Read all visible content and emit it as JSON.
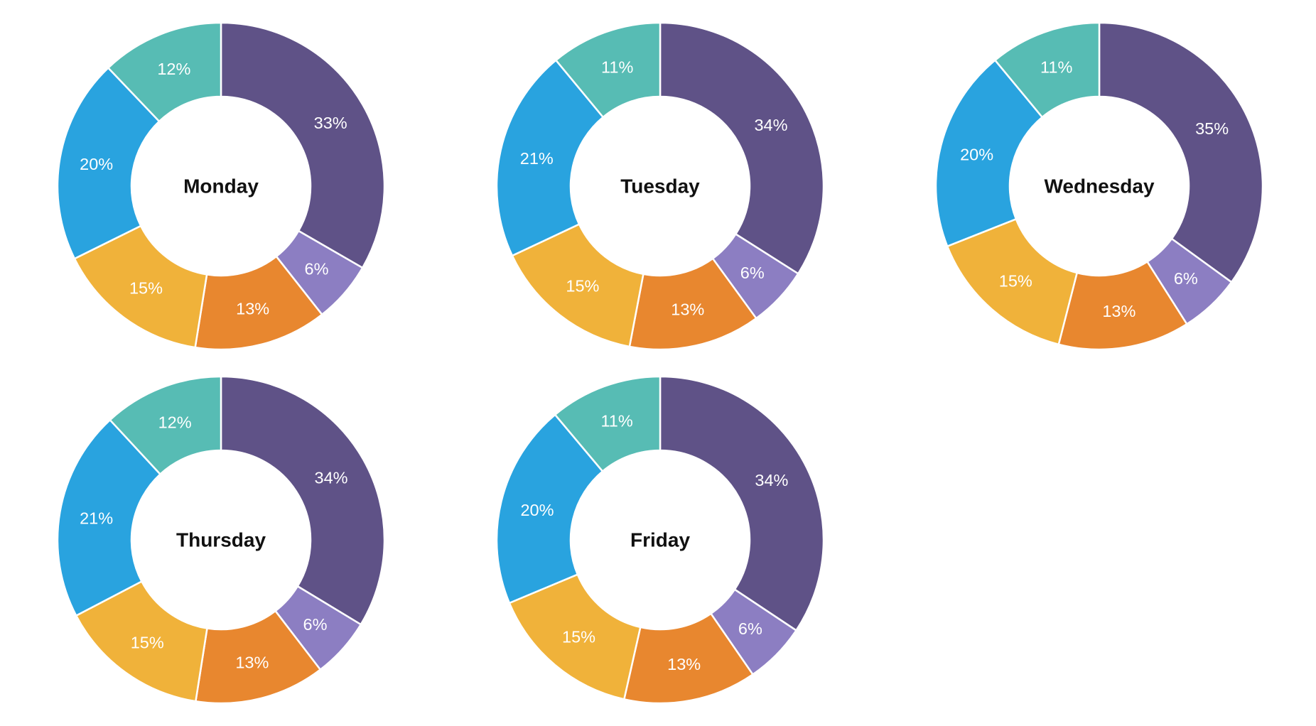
{
  "page": {
    "background": "#ffffff",
    "description": "Grid of five donut charts, one per weekday, each split into six percentage segments"
  },
  "chart_data": {
    "type": "pie",
    "subtype": "donut",
    "legend": "none",
    "grid": "off",
    "start_angle": "12 o'clock, clockwise, purple segment first",
    "segment_color_names": [
      "purple",
      "light-purple",
      "orange",
      "amber",
      "blue",
      "teal"
    ],
    "segment_colors": [
      "#5F5287",
      "#8C7EC2",
      "#E8872F",
      "#F0B23A",
      "#29A3DF",
      "#57BCB4"
    ],
    "text_colors": {
      "percent_label": "#ffffff",
      "title": "#111111"
    },
    "charts": [
      {
        "title": "Monday",
        "values": [
          33,
          6,
          13,
          15,
          20,
          12
        ],
        "labels": [
          "33%",
          "6%",
          "13%",
          "15%",
          "20%",
          "12%"
        ]
      },
      {
        "title": "Tuesday",
        "values": [
          34,
          6,
          13,
          15,
          21,
          11
        ],
        "labels": [
          "34%",
          "6%",
          "13%",
          "15%",
          "21%",
          "11%"
        ]
      },
      {
        "title": "Wednesday",
        "values": [
          35,
          6,
          13,
          15,
          20,
          11
        ],
        "labels": [
          "35%",
          "6%",
          "13%",
          "15%",
          "20%",
          "11%"
        ]
      },
      {
        "title": "Thursday",
        "values": [
          34,
          6,
          13,
          15,
          21,
          12
        ],
        "labels": [
          "34%",
          "6%",
          "13%",
          "15%",
          "21%",
          "12%"
        ]
      },
      {
        "title": "Friday",
        "values": [
          34,
          6,
          13,
          15,
          20,
          11
        ],
        "labels": [
          "34%",
          "6%",
          "13%",
          "15%",
          "20%",
          "11%"
        ]
      }
    ]
  }
}
